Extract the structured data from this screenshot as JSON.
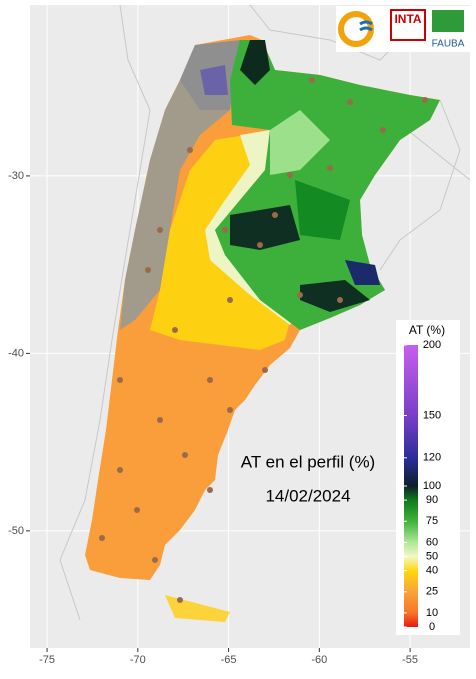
{
  "chart_data": {
    "type": "map",
    "title": "AT en el perfil (%)",
    "subtitle": "14/02/2024",
    "xlim": [
      -75.94,
      -51.7
    ],
    "ylim": [
      -56.6,
      -20.37
    ],
    "xticks": [
      -75,
      -70,
      -65,
      -60,
      -55
    ],
    "yticks": [
      -30,
      -40,
      -50
    ],
    "grid": true,
    "legend": {
      "title": "AT (%)",
      "lim": [
        0,
        200
      ],
      "ticks": [
        0,
        10,
        25,
        40,
        50,
        60,
        75,
        90,
        100,
        120,
        150,
        200
      ],
      "colors": [
        "#e8190f",
        "#f7742a",
        "#f9a33a",
        "#fdd90f",
        "#f4f6c8",
        "#aee89a",
        "#3fb33a",
        "#0f7a1e",
        "#0d1f2a",
        "#2a2e9a",
        "#7a3fc8",
        "#c85ef0"
      ]
    }
  },
  "logos": [
    "INTA",
    "FAUBA"
  ]
}
